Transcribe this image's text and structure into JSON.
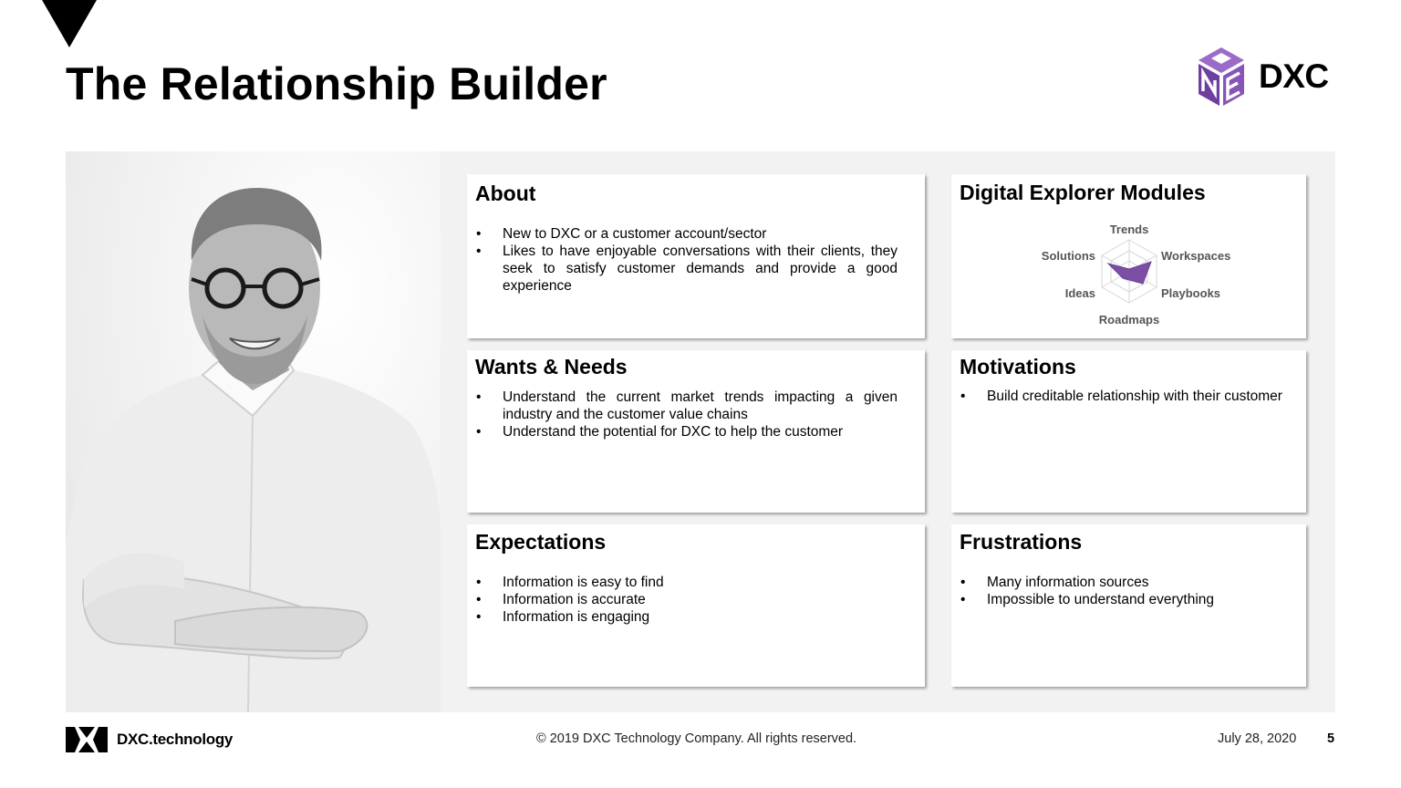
{
  "slide": {
    "title": "The Relationship Builder"
  },
  "brand": {
    "logo_text": "DXC",
    "logo_icon": "cube-logo-icon",
    "accent_color": "#7b4fa6",
    "panel_color": "#f2f2f2"
  },
  "persona_photo": {
    "icon": "person-photo"
  },
  "cards": {
    "about": {
      "title": "About",
      "items": [
        "New to DXC or a customer account/sector",
        "Likes to have enjoyable conversations with their clients, they seek to satisfy customer demands and provide a good experience"
      ]
    },
    "modules": {
      "title": "Digital Explorer Modules",
      "axes": [
        "Trends",
        "Workspaces",
        "Playbooks",
        "Roadmaps",
        "Ideas",
        "Solutions"
      ]
    },
    "wants": {
      "title": "Wants & Needs",
      "items": [
        "Understand the current market trends impacting a given industry and the customer value chains",
        "Understand the potential for DXC to help the customer"
      ]
    },
    "motivations": {
      "title": "Motivations",
      "items": [
        "Build creditable relationship with their customer"
      ]
    },
    "expectations": {
      "title": "Expectations",
      "items": [
        "Information is easy to find",
        "Information is accurate",
        "Information is engaging"
      ]
    },
    "frustrations": {
      "title": "Frustrations",
      "items": [
        "Many information sources",
        "Impossible to understand everything"
      ]
    }
  },
  "footer": {
    "logo_text": "DXC.technology",
    "copyright": "© 2019 DXC Technology Company. All rights reserved.",
    "date": "July 28, 2020",
    "page_number": "5"
  }
}
